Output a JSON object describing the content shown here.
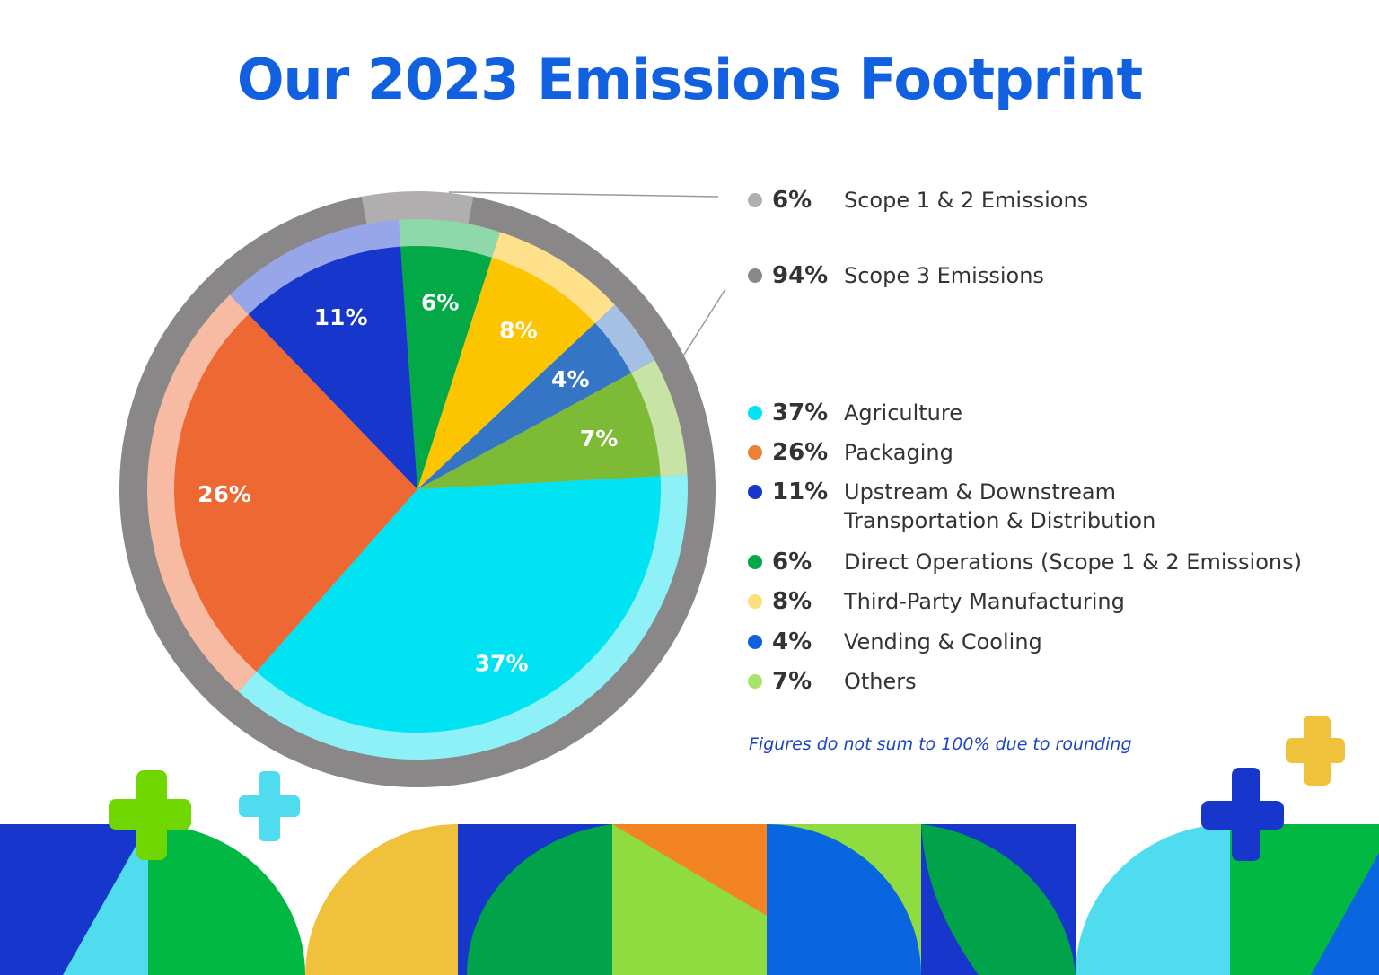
{
  "title": "Our 2023 Emissions Footprint",
  "footnote": "Figures do not sum to 100% due to rounding",
  "chart_data": {
    "type": "pie",
    "scope": [
      {
        "name": "Scope 1 & 2 Emissions",
        "value": 6,
        "label": "6%",
        "color": "#b0aeae"
      },
      {
        "name": "Scope 3 Emissions",
        "value": 94,
        "label": "94%",
        "color": "#898787"
      }
    ],
    "categories": [
      "Agriculture",
      "Packaging",
      "Upstream & Downstream Transportation & Distribution",
      "Direct Operations (Scope 1 & 2 Emissions)",
      "Third-Party Manufacturing",
      "Vending & Cooling",
      "Others"
    ],
    "slices": [
      {
        "name": "Agriculture",
        "value": 37,
        "label": "37%",
        "color": "#00e3f3",
        "ring_color": "#8ef1f8"
      },
      {
        "name": "Packaging",
        "value": 26,
        "label": "26%",
        "color": "#ee6834",
        "ring_color": "#f7baa2"
      },
      {
        "name": "Upstream & Downstream Transportation & Distribution",
        "value": 11,
        "label": "11%",
        "color": "#1737cc",
        "ring_color": "#97a6e9"
      },
      {
        "name": "Direct Operations (Scope 1 & 2 Emissions)",
        "value": 6,
        "label": "6%",
        "color": "#03a847",
        "ring_color": "#8fd8aa"
      },
      {
        "name": "Third-Party Manufacturing",
        "value": 8,
        "label": "8%",
        "color": "#fdc500",
        "ring_color": "#fee18a"
      },
      {
        "name": "Vending & Cooling",
        "value": 4,
        "label": "4%",
        "color": "#3475c6",
        "ring_color": "#a6c0e4"
      },
      {
        "name": "Others",
        "value": 7,
        "label": "7%",
        "color": "#7dbb36",
        "ring_color": "#c8e3a6"
      }
    ],
    "legend_placement": "right"
  },
  "legend": {
    "scope": [
      {
        "pct": "6%",
        "label": "Scope 1 & 2 Emissions",
        "color": "#b0aeae"
      },
      {
        "pct": "94%",
        "label": "Scope 3 Emissions",
        "color": "#898787"
      }
    ],
    "categories": [
      {
        "pct": "37%",
        "label": "Agriculture",
        "color": "#00e3f3"
      },
      {
        "pct": "26%",
        "label": "Packaging",
        "color": "#ee8033"
      },
      {
        "pct": "11%",
        "label": "Upstream & Downstream Transportation & Distribution",
        "color": "#1737cc"
      },
      {
        "pct": "6%",
        "label": "Direct Operations (Scope 1 & 2 Emissions)",
        "color": "#03a847"
      },
      {
        "pct": "8%",
        "label": "Third-Party Manufacturing",
        "color": "#fde07a"
      },
      {
        "pct": "4%",
        "label": "Vending & Cooling",
        "color": "#1060e0"
      },
      {
        "pct": "7%",
        "label": "Others",
        "color": "#a6e36a"
      }
    ]
  },
  "colors": {
    "title": "#1060e0",
    "footnote": "#1c44c8",
    "leader_line": "#999999"
  }
}
